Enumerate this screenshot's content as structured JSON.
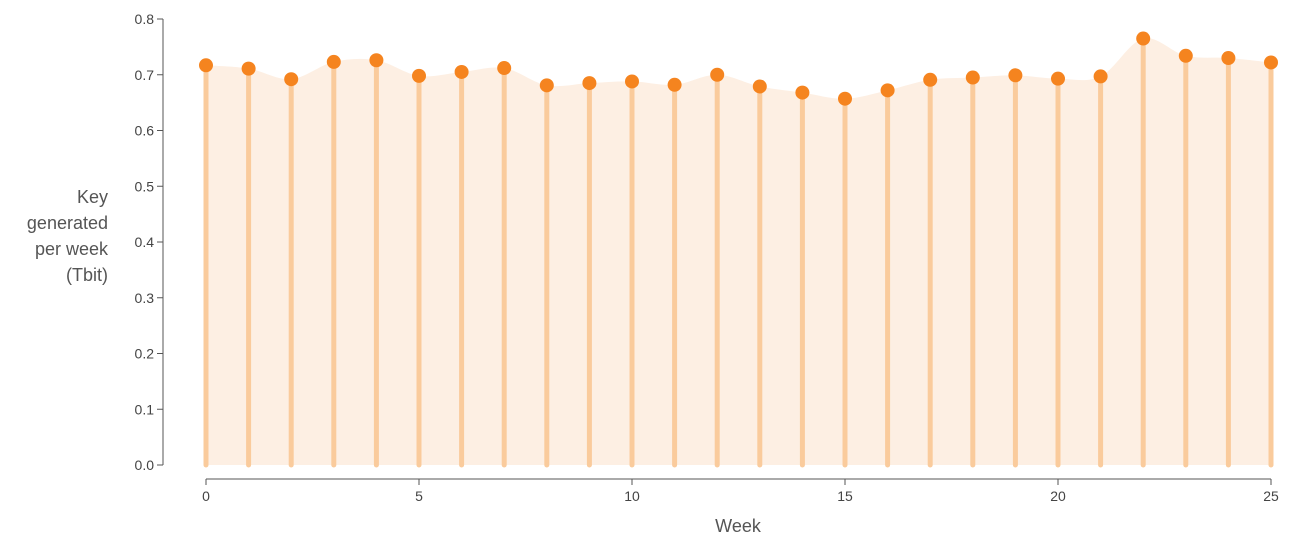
{
  "chart_data": {
    "type": "lollipop",
    "title": "",
    "xlabel": "Week",
    "ylabel_lines": [
      "Key",
      "generated",
      "per week",
      "(Tbit)"
    ],
    "xlim": [
      0,
      25
    ],
    "ylim": [
      0,
      0.8
    ],
    "x_ticks": [
      0,
      5,
      10,
      15,
      20,
      25
    ],
    "y_ticks": [
      0.0,
      0.1,
      0.2,
      0.3,
      0.4,
      0.5,
      0.6,
      0.7,
      0.8
    ],
    "y_tick_labels": [
      "0.0",
      "0.1",
      "0.2",
      "0.3",
      "0.4",
      "0.5",
      "0.6",
      "0.7",
      "0.8"
    ],
    "x": [
      0,
      1,
      2,
      3,
      4,
      5,
      6,
      7,
      8,
      9,
      10,
      11,
      12,
      13,
      14,
      15,
      16,
      17,
      18,
      19,
      20,
      21,
      22,
      23,
      24,
      25
    ],
    "values": [
      0.717,
      0.711,
      0.692,
      0.723,
      0.726,
      0.698,
      0.705,
      0.712,
      0.681,
      0.685,
      0.688,
      0.682,
      0.7,
      0.679,
      0.668,
      0.657,
      0.672,
      0.691,
      0.695,
      0.699,
      0.693,
      0.697,
      0.765,
      0.734,
      0.73,
      0.722
    ],
    "grid": false,
    "colors": {
      "marker": "#F5841F",
      "stem": "#FACB9C",
      "area": "#FDEFE3",
      "axis": "#555555"
    }
  }
}
